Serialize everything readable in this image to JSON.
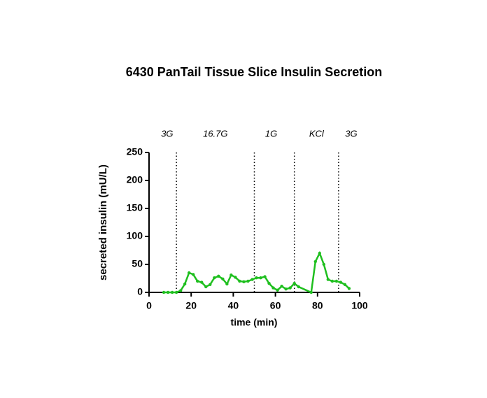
{
  "chart_data": {
    "type": "line",
    "title": "6430 PanTail Tissue Slice Insulin Secretion",
    "x_label": "time (min)",
    "y_label": "secreted insulin (mU/L)",
    "x": [
      7,
      9,
      11,
      13,
      15,
      17,
      19,
      21,
      23,
      25,
      27,
      29,
      31,
      33,
      35,
      37,
      39,
      41,
      43,
      45,
      47,
      49,
      51,
      53,
      55,
      57,
      59,
      61,
      63,
      65,
      67,
      69,
      71,
      77,
      79,
      81,
      83,
      85,
      87,
      89,
      91,
      93,
      95
    ],
    "series": [
      {
        "name": "insulin",
        "color": "#1fbf1f",
        "values": [
          0,
          0,
          0,
          0,
          3,
          15,
          35,
          32,
          20,
          18,
          10,
          14,
          26,
          29,
          24,
          15,
          31,
          27,
          20,
          19,
          20,
          23,
          26,
          26,
          28,
          16,
          8,
          4,
          11,
          6,
          8,
          16,
          10,
          0,
          55,
          70,
          50,
          23,
          20,
          20,
          18,
          14,
          7
        ]
      }
    ],
    "xlim": [
      0,
      100
    ],
    "xticks": [
      0,
      20,
      40,
      60,
      80,
      100
    ],
    "ylim": [
      0,
      250
    ],
    "yticks": [
      0,
      50,
      100,
      150,
      200,
      250
    ],
    "vlines": [
      13,
      50,
      69,
      90
    ],
    "annotations": [
      {
        "text": "3G",
        "x": 8.6
      },
      {
        "text": "16.7G",
        "x": 31.5
      },
      {
        "text": "1G",
        "x": 58
      },
      {
        "text": "KCl",
        "x": 79.5
      },
      {
        "text": "3G",
        "x": 96
      }
    ]
  }
}
